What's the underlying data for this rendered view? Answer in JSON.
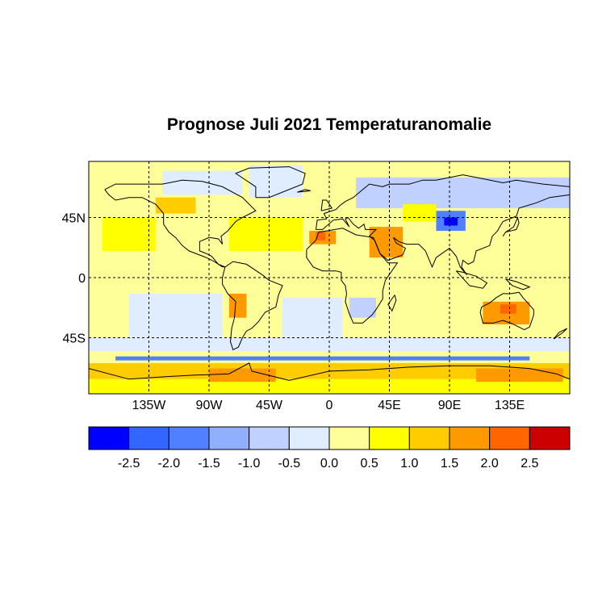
{
  "title": "Prognose Juli 2021 Temperaturanomalie",
  "map": {
    "lon_range": [
      -180,
      180
    ],
    "lat_range": [
      -87,
      87
    ],
    "lon_ticks": [
      {
        "lon": -135,
        "label": "135W"
      },
      {
        "lon": -90,
        "label": "90W"
      },
      {
        "lon": -45,
        "label": "45W"
      },
      {
        "lon": 0,
        "label": "0"
      },
      {
        "lon": 45,
        "label": "45E"
      },
      {
        "lon": 90,
        "label": "90E"
      },
      {
        "lon": 135,
        "label": "135E"
      }
    ],
    "lat_ticks": [
      {
        "lat": 45,
        "label": "45N"
      },
      {
        "lat": 0,
        "label": "0"
      },
      {
        "lat": -45,
        "label": "45S"
      }
    ],
    "gridlines": "dashed",
    "background_anomaly_color": "#FFFF99",
    "anomaly_regions": [
      {
        "name": "Eastern Russia / Siberia",
        "lon": [
          20,
          180
        ],
        "lat": [
          52,
          75
        ],
        "color": "#C0D0FF"
      },
      {
        "name": "Greenland",
        "lon": [
          -60,
          -20
        ],
        "lat": [
          60,
          84
        ],
        "color": "#E0ECFF"
      },
      {
        "name": "Canadian Arctic",
        "lon": [
          -125,
          -65
        ],
        "lat": [
          62,
          80
        ],
        "color": "#E0ECFF"
      },
      {
        "name": "Central Asia cold core",
        "lon": [
          80,
          102
        ],
        "lat": [
          35,
          50
        ],
        "color": "#5080FF"
      },
      {
        "name": "Tibet cold centre",
        "lon": [
          86,
          96
        ],
        "lat": [
          39,
          45
        ],
        "color": "#0000FF"
      },
      {
        "name": "Southeast Pacific",
        "lon": [
          -150,
          -80
        ],
        "lat": [
          -45,
          -5
        ],
        "color": "#E0ECFF"
      },
      {
        "name": "South Atlantic",
        "lon": [
          -35,
          10
        ],
        "lat": [
          -45,
          -15
        ],
        "color": "#E0ECFF"
      },
      {
        "name": "Southern Africa",
        "lon": [
          15,
          35
        ],
        "lat": [
          -30,
          -15
        ],
        "color": "#C0D0FF"
      },
      {
        "name": "Central Asia / Kazakhstan",
        "lon": [
          55,
          80
        ],
        "lat": [
          42,
          55
        ],
        "color": "#FFFF00"
      },
      {
        "name": "North Atlantic",
        "lon": [
          -75,
          -20
        ],
        "lat": [
          20,
          45
        ],
        "color": "#FFFF00"
      },
      {
        "name": "Northeast Pacific",
        "lon": [
          -170,
          -130
        ],
        "lat": [
          20,
          45
        ],
        "color": "#FFFF00"
      },
      {
        "name": "Western Canada",
        "lon": [
          -130,
          -100
        ],
        "lat": [
          48,
          60
        ],
        "color": "#FFCC00"
      },
      {
        "name": "Middle East",
        "lon": [
          30,
          55
        ],
        "lat": [
          15,
          38
        ],
        "color": "#FF9900"
      },
      {
        "name": "Northwest Africa",
        "lon": [
          -15,
          5
        ],
        "lat": [
          25,
          35
        ],
        "color": "#FF9900"
      },
      {
        "name": "Morocco hot spot",
        "lon": [
          -10,
          -3
        ],
        "lat": [
          28,
          34
        ],
        "color": "#FF6600"
      },
      {
        "name": "South America west",
        "lon": [
          -75,
          -62
        ],
        "lat": [
          -30,
          -5
        ],
        "color": "#FF9900"
      },
      {
        "name": "Australia",
        "lon": [
          115,
          150
        ],
        "lat": [
          -35,
          -18
        ],
        "color": "#FF9900"
      },
      {
        "name": "Australia core",
        "lon": [
          128,
          140
        ],
        "lat": [
          -27,
          -20
        ],
        "color": "#FF6600"
      },
      {
        "name": "Pacific tropics",
        "lon": [
          -180,
          180
        ],
        "lat": [
          -12,
          12
        ],
        "color": "#FFFF99"
      },
      {
        "name": "Southern Ocean",
        "lon": [
          -180,
          180
        ],
        "lat": [
          -55,
          -45
        ],
        "color": "#E0ECFF"
      },
      {
        "name": "Circumpolar cold band",
        "lon": [
          -160,
          150
        ],
        "lat": [
          -62,
          -59
        ],
        "color": "#5080FF"
      },
      {
        "name": "Antarctic coast",
        "lon": [
          -180,
          180
        ],
        "lat": [
          -76,
          -64
        ],
        "color": "#FFCC00"
      },
      {
        "name": "Antarctica interior",
        "lon": [
          -180,
          180
        ],
        "lat": [
          -87,
          -76
        ],
        "color": "#FFFF00"
      },
      {
        "name": "Weddell warm",
        "lon": [
          -90,
          -40
        ],
        "lat": [
          -78,
          -68
        ],
        "color": "#FF9900"
      },
      {
        "name": "Ross warm",
        "lon": [
          110,
          175
        ],
        "lat": [
          -78,
          -68
        ],
        "color": "#FF9900"
      }
    ]
  },
  "legend": {
    "colors": [
      "#0000FF",
      "#3366FF",
      "#5080FF",
      "#90B0FF",
      "#C0D0FF",
      "#E0ECFF",
      "#FFFF99",
      "#FFFF00",
      "#FFCC00",
      "#FF9900",
      "#FF6600",
      "#CC0000"
    ],
    "tick_labels": [
      "-2.5",
      "-2.0",
      "-1.5",
      "-1.0",
      "-0.5",
      "0.0",
      "0.5",
      "1.0",
      "1.5",
      "2.0",
      "2.5"
    ]
  }
}
